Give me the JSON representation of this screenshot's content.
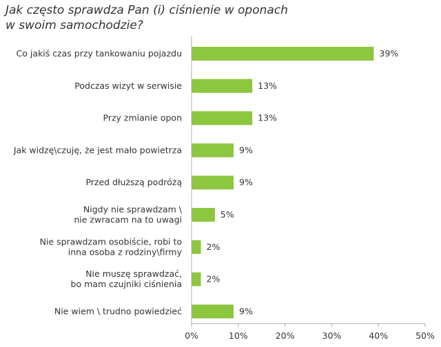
{
  "chart_data": {
    "type": "bar",
    "orientation": "horizontal",
    "title_lines": [
      "Jak często sprawdza Pan (i) ciśnienie w oponach",
      "w swoim samochodzie?"
    ],
    "categories": [
      [
        "Co jakiś czas przy tankowaniu pojazdu"
      ],
      [
        "Podczas wizyt w serwisie"
      ],
      [
        "Przy zmianie opon"
      ],
      [
        "Jak widzę\\czuję, że jest mało powietrza"
      ],
      [
        "Przed dłuższą podróżą"
      ],
      [
        "Nigdy nie sprawdzam \\",
        "nie zwracam na to uwagi"
      ],
      [
        "Nie sprawdzam osobiście, robi to",
        "inna osoba z rodziny\\firmy"
      ],
      [
        "Nie muszę sprawdzać,",
        "bo mam czujniki ciśnienia"
      ],
      [
        "Nie wiem \\ trudno powiedzieć"
      ]
    ],
    "values": [
      39,
      13,
      13,
      9,
      9,
      5,
      2,
      2,
      9
    ],
    "value_labels": [
      "39%",
      "13%",
      "13%",
      "9%",
      "9%",
      "5%",
      "2%",
      "2%",
      "9%"
    ],
    "xlim": [
      0,
      50
    ],
    "xticks": [
      0,
      10,
      20,
      30,
      40,
      50
    ],
    "xtick_labels": [
      "0%",
      "10%",
      "20%",
      "30%",
      "40%",
      "50%"
    ],
    "xlabel": "",
    "ylabel": "",
    "grid": false,
    "colors": {
      "bar": "#8dc63f",
      "axis": "#b0b0b0",
      "text": "#333333"
    }
  }
}
